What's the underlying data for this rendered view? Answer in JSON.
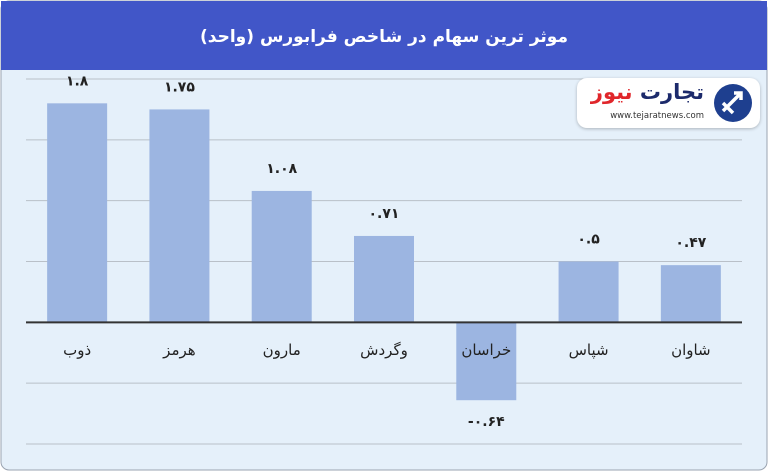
{
  "chart_data": {
    "type": "bar",
    "title": "موثر ترین سهام در شاخص فرابورس (واحد)",
    "categories": [
      "ذوب",
      "هرمز",
      "مارون",
      "وگردش",
      "خراسان",
      "شپاس",
      "شاوان"
    ],
    "values": [
      1.8,
      1.75,
      1.08,
      0.71,
      -0.64,
      0.5,
      0.47
    ],
    "value_labels": [
      "۱.۸",
      "۱.۷۵",
      "۱.۰۸",
      "۰.۷۱",
      "-۰.۶۴",
      "۰.۵",
      "۰.۴۷"
    ],
    "color": "#9cb5e1",
    "ylim": [
      -1,
      2
    ],
    "yticks": [
      -1,
      -0.5,
      0,
      0.5,
      1,
      1.5,
      2
    ],
    "grid": true
  },
  "logo": {
    "name_1": "تجارت",
    "name_2": "نیوز",
    "url": "www.tejaratnews.com"
  }
}
